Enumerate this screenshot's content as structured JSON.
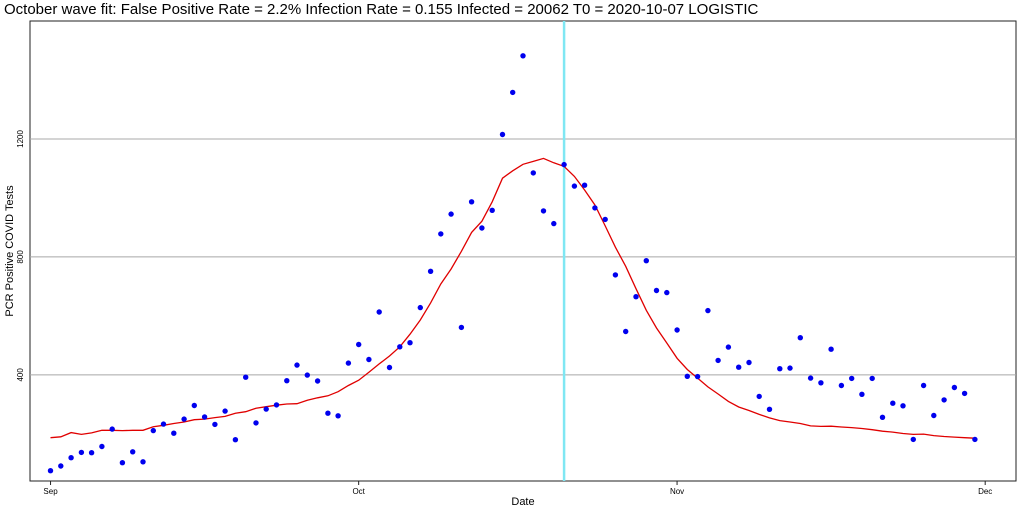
{
  "chart_data": {
    "type": "scatter",
    "title": "October wave fit: False Positive Rate = 2.2% Infection Rate = 0.155 Infected = 20062 T0 = 2020-10-07 LOGISTIC",
    "xlabel": "Date",
    "ylabel": "PCR Positive COVID Tests",
    "x_ticks": [
      {
        "date": "2020-09-01",
        "label": "Sep"
      },
      {
        "date": "2020-10-01",
        "label": "Oct"
      },
      {
        "date": "2020-11-01",
        "label": "Nov"
      },
      {
        "date": "2020-12-01",
        "label": "Dec"
      }
    ],
    "y_ticks": [
      400,
      800,
      1200
    ],
    "xlim": [
      "2020-08-30",
      "2020-12-04"
    ],
    "ylim": [
      40,
      1600
    ],
    "grid": "horizontal",
    "legend": "none",
    "vline": {
      "date": "2020-10-21",
      "color": "#7fe7f3"
    },
    "colors": {
      "points": "#0000ee",
      "fit": "#e00000",
      "grid": "#a8a8a8",
      "border": "#222222"
    },
    "series": [
      {
        "type": "scatter",
        "x": [
          "2020-09-01",
          "2020-09-02",
          "2020-09-03",
          "2020-09-04",
          "2020-09-05",
          "2020-09-06",
          "2020-09-07",
          "2020-09-08",
          "2020-09-09",
          "2020-09-10",
          "2020-09-11",
          "2020-09-12",
          "2020-09-13",
          "2020-09-14",
          "2020-09-15",
          "2020-09-16",
          "2020-09-17",
          "2020-09-18",
          "2020-09-19",
          "2020-09-20",
          "2020-09-21",
          "2020-09-22",
          "2020-09-23",
          "2020-09-24",
          "2020-09-25",
          "2020-09-26",
          "2020-09-27",
          "2020-09-28",
          "2020-09-29",
          "2020-09-30",
          "2020-10-01",
          "2020-10-02",
          "2020-10-03",
          "2020-10-04",
          "2020-10-05",
          "2020-10-06",
          "2020-10-07",
          "2020-10-08",
          "2020-10-09",
          "2020-10-10",
          "2020-10-11",
          "2020-10-12",
          "2020-10-13",
          "2020-10-14",
          "2020-10-15",
          "2020-10-16",
          "2020-10-17",
          "2020-10-18",
          "2020-10-19",
          "2020-10-20",
          "2020-10-21",
          "2020-10-22",
          "2020-10-23",
          "2020-10-24",
          "2020-10-25",
          "2020-10-26",
          "2020-10-27",
          "2020-10-28",
          "2020-10-29",
          "2020-10-30",
          "2020-10-31",
          "2020-11-01",
          "2020-11-02",
          "2020-11-03",
          "2020-11-04",
          "2020-11-05",
          "2020-11-06",
          "2020-11-07",
          "2020-11-08",
          "2020-11-09",
          "2020-11-10",
          "2020-11-11",
          "2020-11-12",
          "2020-11-13",
          "2020-11-14",
          "2020-11-15",
          "2020-11-16",
          "2020-11-17",
          "2020-11-18",
          "2020-11-19",
          "2020-11-20",
          "2020-11-21",
          "2020-11-22",
          "2020-11-23",
          "2020-11-24",
          "2020-11-25",
          "2020-11-26",
          "2020-11-27",
          "2020-11-28",
          "2020-11-29",
          "2020-11-30"
        ],
        "values": [
          75,
          91,
          119,
          137,
          136,
          157,
          216,
          102,
          139,
          105,
          211,
          233,
          202,
          250,
          296,
          257,
          232,
          277,
          180,
          392,
          237,
          284,
          298,
          380,
          433,
          399,
          379,
          270,
          261,
          440,
          503,
          452,
          613,
          425,
          495,
          509,
          628,
          751,
          878,
          945,
          561,
          987,
          898,
          958,
          1215,
          1358,
          1482,
          1085,
          956,
          913,
          1113,
          1040,
          1043,
          966,
          927,
          739,
          547,
          665,
          787,
          686,
          679,
          552,
          395,
          394,
          618,
          449,
          494,
          426,
          442,
          327,
          283,
          421,
          423,
          526,
          389,
          373,
          487,
          364,
          388,
          334,
          388,
          256,
          304,
          295,
          181,
          364,
          262,
          315,
          357,
          337,
          181
        ]
      },
      {
        "type": "line",
        "x": [
          "2020-09-01",
          "2020-09-02",
          "2020-09-03",
          "2020-09-04",
          "2020-09-05",
          "2020-09-06",
          "2020-09-07",
          "2020-09-08",
          "2020-09-09",
          "2020-09-10",
          "2020-09-11",
          "2020-09-12",
          "2020-09-13",
          "2020-09-14",
          "2020-09-15",
          "2020-09-16",
          "2020-09-17",
          "2020-09-18",
          "2020-09-19",
          "2020-09-20",
          "2020-09-21",
          "2020-09-22",
          "2020-09-23",
          "2020-09-24",
          "2020-09-25",
          "2020-09-26",
          "2020-09-27",
          "2020-09-28",
          "2020-09-29",
          "2020-09-30",
          "2020-10-01",
          "2020-10-02",
          "2020-10-03",
          "2020-10-04",
          "2020-10-05",
          "2020-10-06",
          "2020-10-07",
          "2020-10-08",
          "2020-10-09",
          "2020-10-10",
          "2020-10-11",
          "2020-10-12",
          "2020-10-13",
          "2020-10-14",
          "2020-10-15",
          "2020-10-16",
          "2020-10-17",
          "2020-10-18",
          "2020-10-19",
          "2020-10-20",
          "2020-10-21",
          "2020-10-22",
          "2020-10-23",
          "2020-10-24",
          "2020-10-25",
          "2020-10-26",
          "2020-10-27",
          "2020-10-28",
          "2020-10-29",
          "2020-10-30",
          "2020-10-31",
          "2020-11-01",
          "2020-11-02",
          "2020-11-03",
          "2020-11-04",
          "2020-11-05",
          "2020-11-06",
          "2020-11-07",
          "2020-11-08",
          "2020-11-09",
          "2020-11-10",
          "2020-11-11",
          "2020-11-12",
          "2020-11-13",
          "2020-11-14",
          "2020-11-15",
          "2020-11-16",
          "2020-11-17",
          "2020-11-18",
          "2020-11-19",
          "2020-11-20",
          "2020-11-21",
          "2020-11-22",
          "2020-11-23",
          "2020-11-24",
          "2020-11-25",
          "2020-11-26",
          "2020-11-27",
          "2020-11-28",
          "2020-11-29",
          "2020-11-30"
        ],
        "values": [
          187,
          190,
          204,
          198,
          203,
          212,
          212,
          211,
          212,
          212,
          224,
          229,
          235,
          240,
          248,
          250,
          255,
          259,
          270,
          275,
          287,
          292,
          297,
          301,
          302,
          314,
          322,
          329,
          343,
          364,
          382,
          409,
          437,
          464,
          495,
          538,
          586,
          644,
          708,
          759,
          819,
          883,
          921,
          987,
          1067,
          1092,
          1114,
          1124,
          1134,
          1119,
          1107,
          1073,
          1027,
          976,
          905,
          833,
          768,
          692,
          619,
          559,
          508,
          456,
          418,
          389,
          359,
          335,
          310,
          291,
          279,
          266,
          254,
          245,
          240,
          235,
          227,
          225,
          226,
          223,
          221,
          218,
          214,
          209,
          206,
          201,
          198,
          199,
          194,
          191,
          189,
          187,
          185
        ]
      }
    ]
  }
}
